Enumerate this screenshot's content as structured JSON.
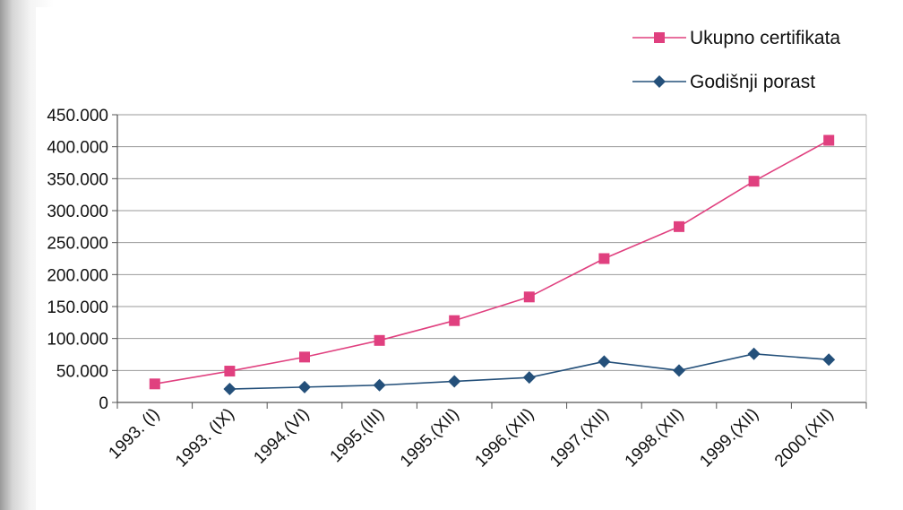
{
  "chart_data": {
    "type": "line",
    "title": "",
    "xlabel": "",
    "ylabel": "",
    "categories": [
      "1993. (I)",
      "1993. (IX)",
      "1994.(VI)",
      "1995.(III)",
      "1995.(XII)",
      "1996.(XII)",
      "1997.(XII)",
      "1998.(XII)",
      "1999.(XII)",
      "2000.(XII)"
    ],
    "ylim": [
      0,
      450000
    ],
    "yticks": [
      "0",
      "50.000",
      "100.000",
      "150.000",
      "200.000",
      "250.000",
      "300.000",
      "350.000",
      "400.000",
      "450.000"
    ],
    "grid": "horizontal",
    "legend_position": "top-right",
    "series": [
      {
        "name": "Ukupno certifikata",
        "color": "#e0407f",
        "marker": "square",
        "values": [
          29000,
          49000,
          71000,
          97000,
          128000,
          165000,
          225000,
          275000,
          346000,
          410000
        ]
      },
      {
        "name": "Godišnji porast",
        "color": "#24507a",
        "marker": "diamond",
        "values": [
          null,
          21000,
          24000,
          27000,
          33000,
          39000,
          64000,
          50000,
          76000,
          67000
        ]
      }
    ]
  }
}
